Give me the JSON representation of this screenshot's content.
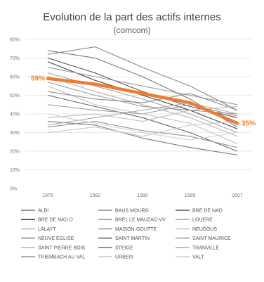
{
  "chart_data": {
    "type": "line",
    "title": "Evolution de la part des actifs internes",
    "subtitle": "(comcom)",
    "x": [
      "1975",
      "1982",
      "1990",
      "1999",
      "2007"
    ],
    "ylim": [
      0,
      80
    ],
    "yticks": [
      "0%",
      "10%",
      "20%",
      "30%",
      "40%",
      "50%",
      "60%",
      "70%",
      "80%"
    ],
    "grid": true,
    "legend_position": "bottom",
    "highlight": {
      "color": "#ED7D31",
      "values": [
        59,
        56,
        51,
        46,
        35
      ],
      "start_label": "59%",
      "end_label": "35%"
    },
    "series": [
      {
        "name": "ALBI",
        "color": "#777777",
        "values": [
          74,
          70,
          60,
          48,
          33
        ]
      },
      {
        "name": "BAUS MOURG",
        "color": "#888888",
        "values": [
          72,
          76,
          65,
          55,
          42
        ]
      },
      {
        "name": "BRE DE NAD",
        "color": "#555555",
        "values": [
          70,
          62,
          52,
          44,
          38
        ]
      },
      {
        "name": "BRE DE NAD D",
        "color": "#444444",
        "values": [
          68,
          58,
          50,
          42,
          32
        ]
      },
      {
        "name": "BREL LE MAUZAC-VV",
        "color": "#9a9a9a",
        "values": [
          65,
          60,
          55,
          50,
          45
        ]
      },
      {
        "name": "LOUERE",
        "color": "#aaaaaa",
        "values": [
          62,
          55,
          48,
          40,
          30
        ]
      },
      {
        "name": "LALAYT",
        "color": "#b5b5b5",
        "values": [
          60,
          52,
          45,
          38,
          28
        ]
      },
      {
        "name": "MAISON-GOUTTE",
        "color": "#999999",
        "values": [
          57,
          50,
          44,
          42,
          40
        ]
      },
      {
        "name": "NEUDOUS",
        "color": "#c2c2c2",
        "values": [
          55,
          45,
          40,
          35,
          24
        ]
      },
      {
        "name": "NEUVE EGLISE",
        "color": "#8c8c8c",
        "values": [
          52,
          48,
          46,
          51,
          42
        ]
      },
      {
        "name": "SAINT MARTIN",
        "color": "#666666",
        "values": [
          50,
          44,
          38,
          30,
          20
        ]
      },
      {
        "name": "SAINT MAURICE",
        "color": "#a0a0a0",
        "values": [
          45,
          42,
          40,
          45,
          39
        ]
      },
      {
        "name": "SAINT PIERRE BOIS",
        "color": "#bdbdbd",
        "values": [
          38,
          40,
          36,
          42,
          44
        ]
      },
      {
        "name": "STEIGE",
        "color": "#7a7a7a",
        "values": [
          36,
          34,
          27,
          22,
          18
        ]
      },
      {
        "name": "TRANVILLE",
        "color": "#b0b0b0",
        "values": [
          34,
          38,
          42,
          46,
          40
        ]
      },
      {
        "name": "TRIEMBACH AU VAL",
        "color": "#939393",
        "values": [
          33,
          36,
          31,
          28,
          22
        ]
      },
      {
        "name": "URBEIS",
        "color": "#c8c8c8",
        "values": [
          30,
          33,
          28,
          34,
          36
        ]
      },
      {
        "name": "VALT",
        "color": "#d0d0d0",
        "values": [
          40,
          35,
          30,
          26,
          30
        ]
      }
    ]
  }
}
